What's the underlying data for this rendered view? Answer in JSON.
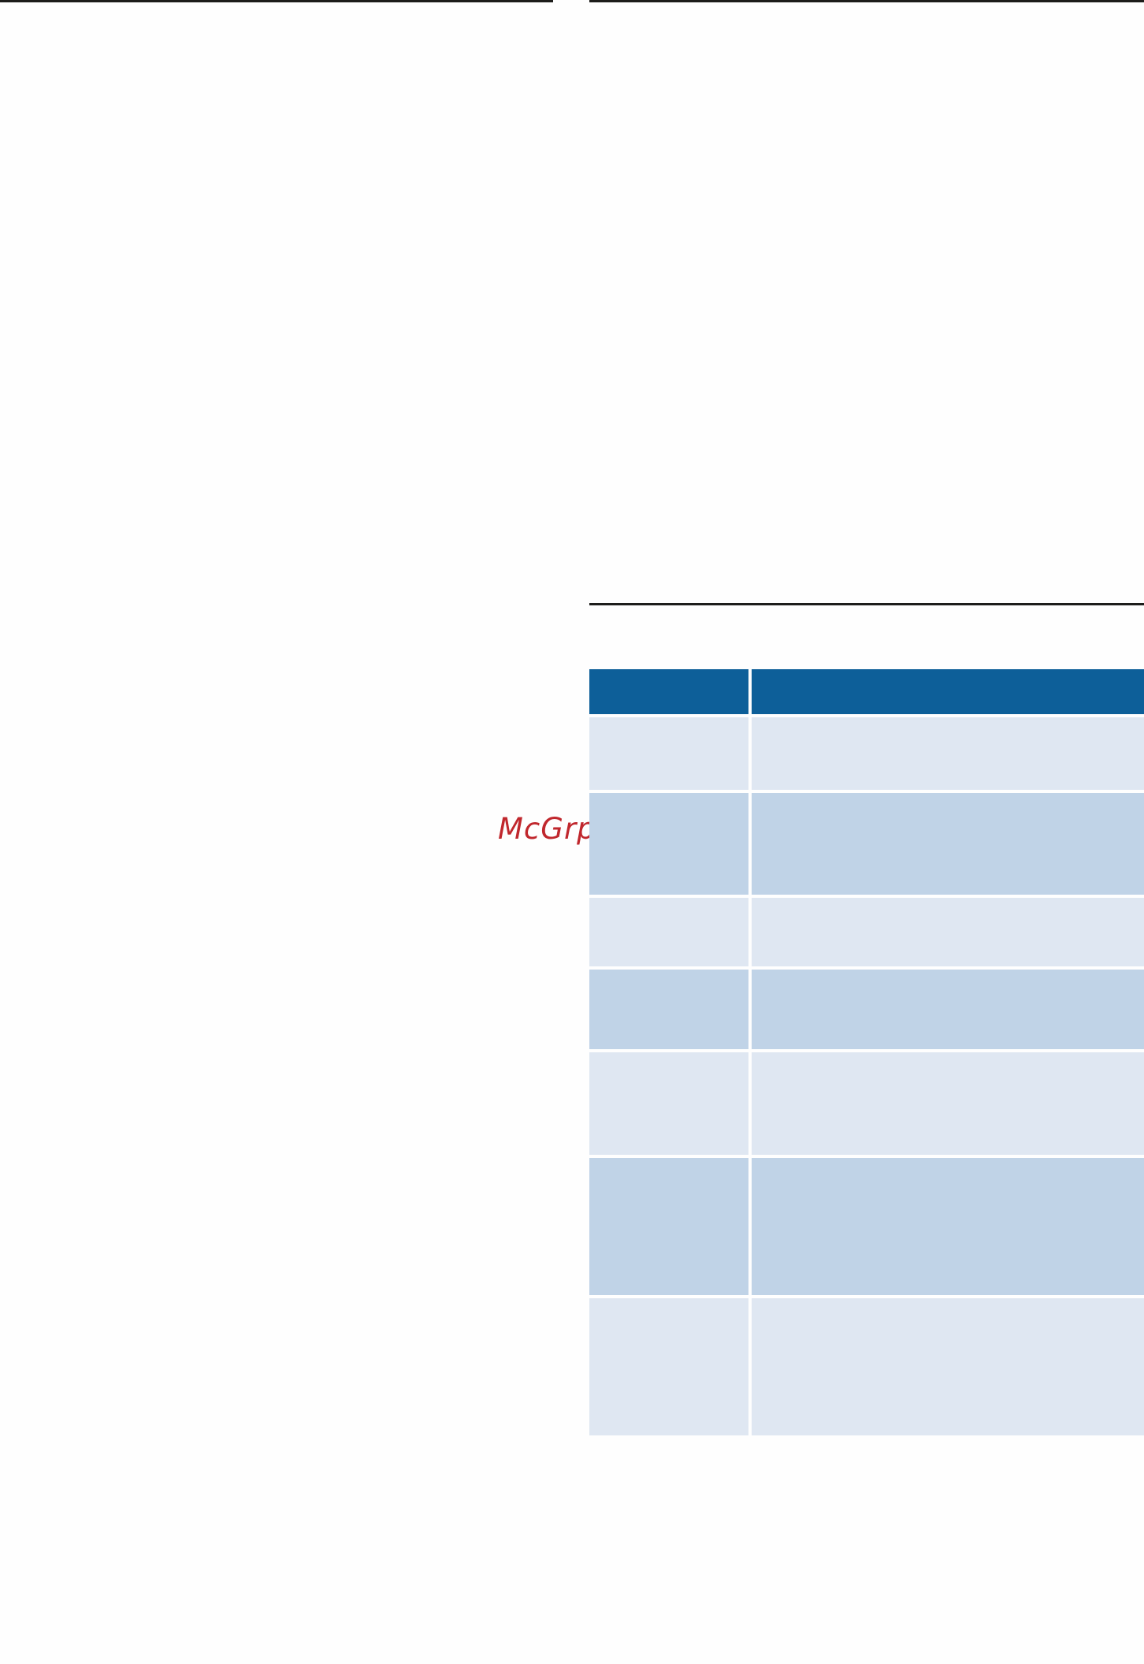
{
  "watermark": {
    "text": "McGrp.Ru",
    "color": "#c0272d"
  },
  "colors": {
    "rule": "#1d1d1b",
    "table_header": "#0d5f99",
    "row_light": "#dfe7f2",
    "row_dark": "#c0d3e7"
  },
  "table": {
    "rows": [
      {
        "shade": "light"
      },
      {
        "shade": "dark"
      },
      {
        "shade": "light"
      },
      {
        "shade": "dark"
      },
      {
        "shade": "light"
      },
      {
        "shade": "dark"
      },
      {
        "shade": "light"
      }
    ]
  }
}
